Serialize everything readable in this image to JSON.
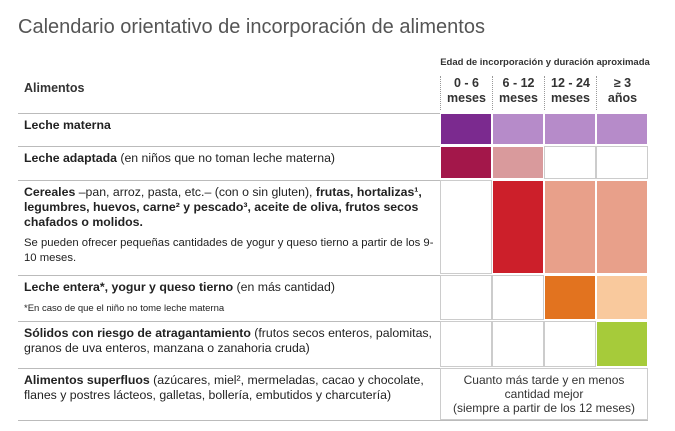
{
  "title": "Calendario orientativo de incorporación de alimentos",
  "table": {
    "age_header": "Edad de incorporación y duración aproximada",
    "food_header": "Alimentos",
    "columns": [
      [
        "0 - 6",
        "meses"
      ],
      [
        "6 - 12",
        "meses"
      ],
      [
        "12 - 24",
        "meses"
      ],
      [
        "≥ 3",
        "años"
      ]
    ],
    "rows": [
      {
        "food": [
          {
            "text": "Leche materna",
            "bold": true
          }
        ],
        "cells": [
          "#7b2a8f",
          "#b68bc9",
          "#b68bc9",
          "#b68bc9"
        ]
      },
      {
        "food": [
          {
            "text": "Leche adaptada",
            "bold": true
          },
          {
            "text": " (en niños que no toman leche materna)",
            "bold": false
          }
        ],
        "cells": [
          "#a3174a",
          "#d99a9c",
          "#ffffff",
          "#ffffff"
        ]
      },
      {
        "food": [
          {
            "text": "Cereales",
            "bold": true
          },
          {
            "text": " –pan, arroz, pasta, etc.– (con o sin gluten), ",
            "bold": false
          },
          {
            "text": "frutas, hortalizas¹, legumbres, huevos, carne² y pescado³, aceite de oliva, frutos secos chafados o molidos.",
            "bold": true
          }
        ],
        "note": "Se pueden ofrecer pequeñas cantidades de yogur y queso tierno a partir de los 9-10 meses.",
        "cells": [
          "#ffffff",
          "#cc1f2a",
          "#e8a08a",
          "#e8a08a"
        ]
      },
      {
        "food": [
          {
            "text": "Leche entera*, yogur y queso tierno",
            "bold": true
          },
          {
            "text": " (en más cantidad)",
            "bold": false
          }
        ],
        "note": "*En caso de que el niño no tome leche materna",
        "cells": [
          "#ffffff",
          "#ffffff",
          "#e2731f",
          "#f9c99d"
        ]
      },
      {
        "food": [
          {
            "text": "Sólidos con riesgo de atragantamiento",
            "bold": true
          },
          {
            "text": " (frutos secos enteros, palomitas, granos de uva enteros, manzana o zanahoria cruda)",
            "bold": false
          }
        ],
        "cells": [
          "#ffffff",
          "#ffffff",
          "#ffffff",
          "#a6cb3a"
        ]
      },
      {
        "food": [
          {
            "text": "Alimentos superfluos",
            "bold": true
          },
          {
            "text": " (azúcares, miel², mermeladas, cacao y chocolate, flanes y postres lácteos, galletas, bollería, embutidos y charcutería)",
            "bold": false
          }
        ],
        "merged_text": [
          "Cuanto más tarde y en menos",
          "cantidad mejor",
          "(siempre a partir de los 12 meses)"
        ]
      }
    ]
  }
}
